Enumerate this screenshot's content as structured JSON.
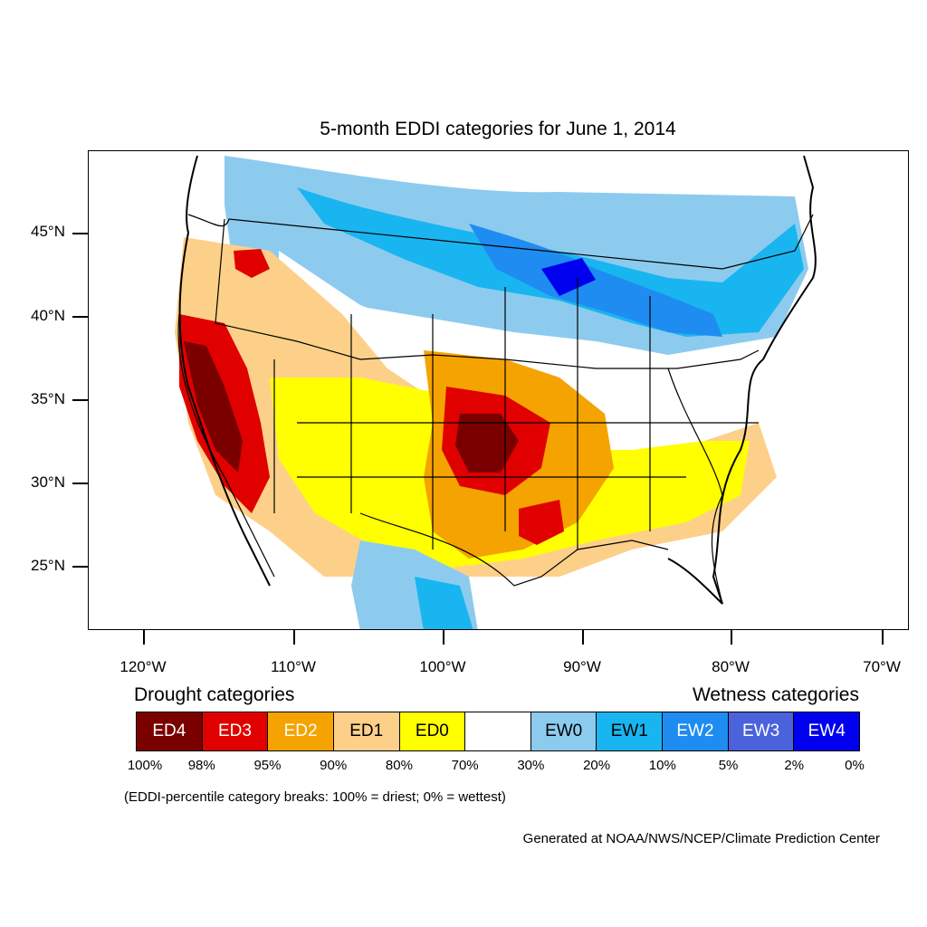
{
  "title": "5-month EDDI categories for June 1, 2014",
  "axes": {
    "lat_labels": [
      "45°N",
      "40°N",
      "35°N",
      "30°N",
      "25°N"
    ],
    "lon_labels": [
      "120°W",
      "110°W",
      "100°W",
      "90°W",
      "80°W",
      "70°W"
    ]
  },
  "legend": {
    "drought_heading": "Drought categories",
    "wetness_heading": "Wetness categories",
    "categories": [
      {
        "label": "ED4",
        "color": "#7a0000",
        "text_color": "#ffffff"
      },
      {
        "label": "ED3",
        "color": "#e00000",
        "text_color": "#ffffff"
      },
      {
        "label": "ED2",
        "color": "#f5a300",
        "text_color": "#ffffff"
      },
      {
        "label": "ED1",
        "color": "#fdd08a",
        "text_color": "#000000"
      },
      {
        "label": "ED0",
        "color": "#ffff00",
        "text_color": "#000000"
      },
      {
        "label": "",
        "color": "#ffffff",
        "text_color": "#000000"
      },
      {
        "label": "EW0",
        "color": "#8ccbee",
        "text_color": "#000000"
      },
      {
        "label": "EW1",
        "color": "#19b5f0",
        "text_color": "#000000"
      },
      {
        "label": "EW2",
        "color": "#1e8cf0",
        "text_color": "#ffffff"
      },
      {
        "label": "EW3",
        "color": "#4b62dc",
        "text_color": "#ffffff"
      },
      {
        "label": "EW4",
        "color": "#0000ee",
        "text_color": "#ffffff"
      }
    ],
    "breaks": [
      "100%",
      "98%",
      "95%",
      "90%",
      "80%",
      "70%",
      "30%",
      "20%",
      "10%",
      "5%",
      "2%",
      "0%"
    ],
    "note": "(EDDI-percentile category breaks: 100% = driest; 0% = wettest)"
  },
  "credit": "Generated at NOAA/NWS/NCEP/Climate Prediction Center"
}
